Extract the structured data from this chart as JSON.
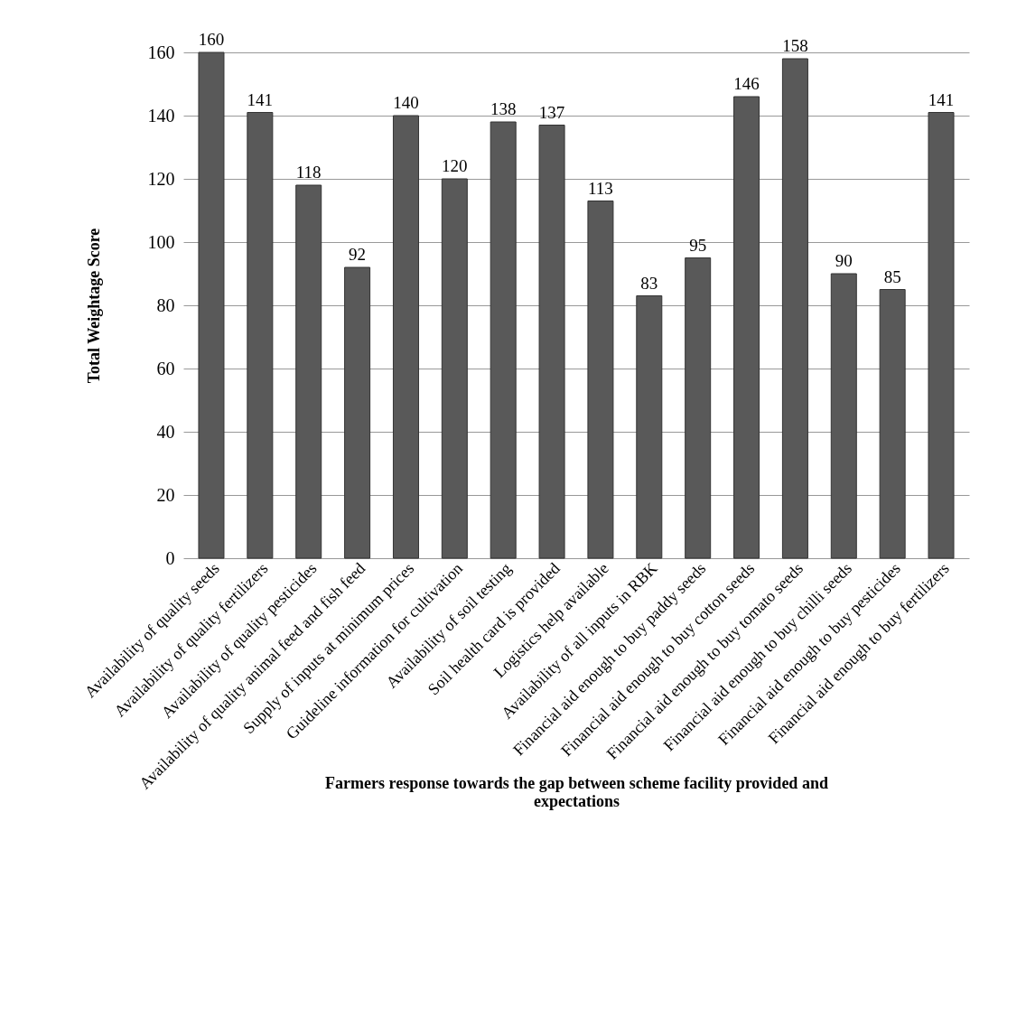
{
  "chart_data": {
    "type": "bar",
    "xlabel": "Farmers response towards the gap between scheme facility provided and expectations",
    "ylabel": "Total Weightage Score",
    "categories": [
      "Availability of quality seeds",
      "Availability of quality fertilizers",
      "Availability of quality pesticides",
      "Availability of quality animal feed and fish feed",
      "Supply of inputs at minimum prices",
      "Guideline information for cultivation",
      "Availability of soil testing",
      "Soil health card is provided",
      "Logistics help available",
      "Availability of all inputs in RBK",
      "Financial aid enough to buy paddy seeds",
      "Financial aid enough to buy cotton seeds",
      "Financial aid enough to buy tomato seeds",
      "Financial aid enough to buy chilli seeds",
      "Financial aid enough to buy pesticides",
      "Financial aid enough to buy fertilizers"
    ],
    "values": [
      160,
      141,
      118,
      92,
      140,
      120,
      138,
      137,
      113,
      83,
      95,
      146,
      158,
      90,
      85,
      141
    ],
    "color": "#595959",
    "ylim": [
      0,
      160
    ],
    "yticks": [
      0,
      20,
      40,
      60,
      80,
      100,
      120,
      140,
      160
    ],
    "grid": "y",
    "data_labels": true
  }
}
